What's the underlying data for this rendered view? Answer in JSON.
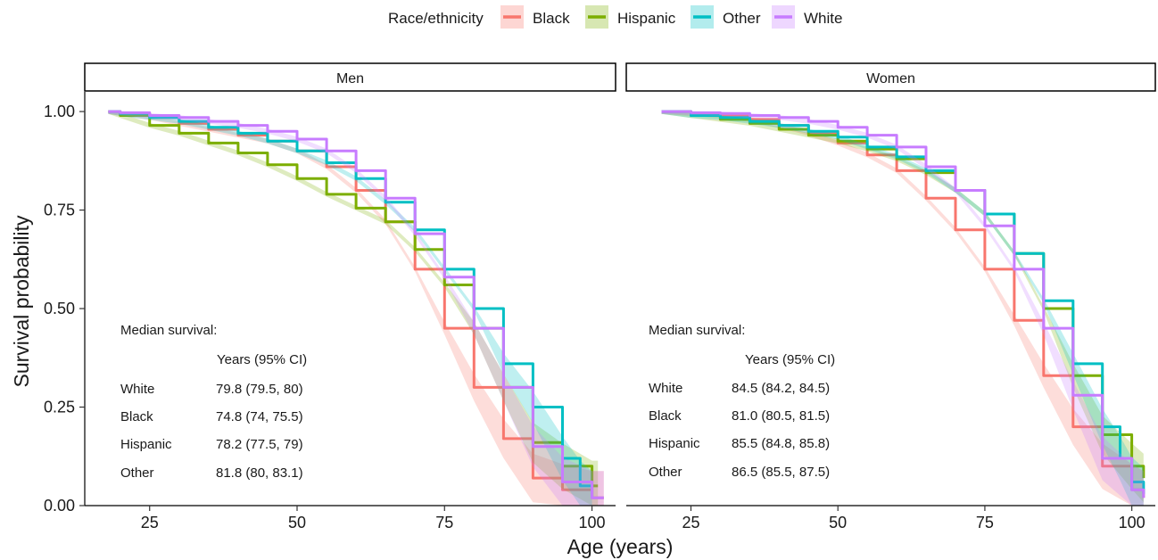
{
  "chart_data": {
    "type": "line",
    "subtype": "kaplan-meier survival curves with confidence bands",
    "legend": {
      "title": "Race/ethnicity",
      "placement": "top",
      "entries": [
        "Black",
        "Hispanic",
        "Other",
        "White"
      ]
    },
    "xlabel": "Age (years)",
    "ylabel": "Survival probability",
    "xlim": [
      14,
      104
    ],
    "ylim": [
      0,
      1.05
    ],
    "xticks": [
      25,
      50,
      75,
      100
    ],
    "yticks": [
      "0.00",
      "0.25",
      "0.50",
      "0.75",
      "1.00"
    ],
    "grid": false,
    "colors": {
      "Black": "#F8766D",
      "Hispanic": "#7CAE00",
      "Other": "#00BFC4",
      "White": "#C77CFF"
    },
    "panels": [
      {
        "title": "Men",
        "series": [
          {
            "name": "Black",
            "x": [
              18,
              20,
              25,
              30,
              35,
              40,
              45,
              50,
              55,
              60,
              65,
              70,
              75,
              80,
              85,
              90,
              95,
              100,
              102
            ],
            "y": [
              1.0,
              0.995,
              0.985,
              0.97,
              0.955,
              0.94,
              0.925,
              0.9,
              0.86,
              0.8,
              0.72,
              0.6,
              0.45,
              0.3,
              0.17,
              0.07,
              0.04,
              0.02,
              0.02
            ]
          },
          {
            "name": "Hispanic",
            "x": [
              18,
              20,
              25,
              30,
              35,
              40,
              45,
              50,
              55,
              60,
              65,
              70,
              75,
              80,
              85,
              90,
              95,
              100,
              101
            ],
            "y": [
              1.0,
              0.99,
              0.965,
              0.945,
              0.92,
              0.895,
              0.865,
              0.83,
              0.79,
              0.755,
              0.72,
              0.65,
              0.56,
              0.45,
              0.3,
              0.16,
              0.1,
              0.05,
              0.05
            ]
          },
          {
            "name": "Other",
            "x": [
              18,
              20,
              25,
              30,
              35,
              40,
              45,
              50,
              55,
              60,
              65,
              70,
              75,
              80,
              85,
              90,
              95,
              98,
              100
            ],
            "y": [
              1.0,
              0.995,
              0.985,
              0.975,
              0.96,
              0.945,
              0.925,
              0.9,
              0.87,
              0.83,
              0.77,
              0.7,
              0.6,
              0.5,
              0.36,
              0.25,
              0.12,
              0.05,
              0.02
            ]
          },
          {
            "name": "White",
            "x": [
              18,
              20,
              25,
              30,
              35,
              40,
              45,
              50,
              55,
              60,
              65,
              70,
              75,
              80,
              85,
              90,
              95,
              100,
              102
            ],
            "y": [
              1.0,
              0.997,
              0.99,
              0.985,
              0.975,
              0.965,
              0.95,
              0.93,
              0.9,
              0.85,
              0.78,
              0.69,
              0.58,
              0.45,
              0.3,
              0.15,
              0.06,
              0.02,
              0.02
            ]
          }
        ],
        "annotation": {
          "heading": "Median survival:",
          "column_header": "Years (95% CI)",
          "rows": [
            {
              "group": "White",
              "value": "79.8 (79.5, 80)"
            },
            {
              "group": "Black",
              "value": "74.8 (74, 75.5)"
            },
            {
              "group": "Hispanic",
              "value": "78.2 (77.5, 79)"
            },
            {
              "group": "Other",
              "value": "81.8 (80, 83.1)"
            }
          ]
        }
      },
      {
        "title": "Women",
        "series": [
          {
            "name": "Black",
            "x": [
              20,
              25,
              30,
              35,
              40,
              45,
              50,
              55,
              60,
              65,
              70,
              75,
              80,
              85,
              90,
              95,
              100,
              102
            ],
            "y": [
              1.0,
              0.995,
              0.99,
              0.98,
              0.965,
              0.945,
              0.92,
              0.89,
              0.85,
              0.78,
              0.7,
              0.6,
              0.47,
              0.33,
              0.2,
              0.1,
              0.04,
              0.02
            ]
          },
          {
            "name": "Hispanic",
            "x": [
              20,
              25,
              30,
              35,
              40,
              45,
              50,
              55,
              60,
              65,
              70,
              75,
              80,
              85,
              90,
              95,
              100,
              102
            ],
            "y": [
              1.0,
              0.99,
              0.98,
              0.97,
              0.955,
              0.94,
              0.925,
              0.905,
              0.88,
              0.845,
              0.8,
              0.74,
              0.64,
              0.5,
              0.33,
              0.18,
              0.1,
              0.07
            ]
          },
          {
            "name": "Other",
            "x": [
              20,
              25,
              30,
              35,
              40,
              45,
              50,
              55,
              60,
              65,
              70,
              75,
              80,
              85,
              90,
              95,
              98,
              100,
              102
            ],
            "y": [
              1.0,
              0.99,
              0.985,
              0.975,
              0.965,
              0.95,
              0.935,
              0.91,
              0.885,
              0.85,
              0.8,
              0.74,
              0.64,
              0.52,
              0.36,
              0.2,
              0.12,
              0.06,
              0.03
            ]
          },
          {
            "name": "White",
            "x": [
              20,
              25,
              30,
              35,
              40,
              45,
              50,
              55,
              60,
              65,
              70,
              75,
              80,
              85,
              90,
              95,
              100,
              102
            ],
            "y": [
              1.0,
              0.997,
              0.995,
              0.99,
              0.985,
              0.975,
              0.96,
              0.94,
              0.91,
              0.86,
              0.8,
              0.71,
              0.6,
              0.45,
              0.28,
              0.12,
              0.04,
              0.02
            ]
          }
        ],
        "annotation": {
          "heading": "Median survival:",
          "column_header": "Years (95% CI)",
          "rows": [
            {
              "group": "White",
              "value": "84.5 (84.2, 84.5)"
            },
            {
              "group": "Black",
              "value": "81.0 (80.5, 81.5)"
            },
            {
              "group": "Hispanic",
              "value": "85.5 (84.8, 85.8)"
            },
            {
              "group": "Other",
              "value": "86.5 (85.5, 87.5)"
            }
          ]
        }
      }
    ]
  }
}
